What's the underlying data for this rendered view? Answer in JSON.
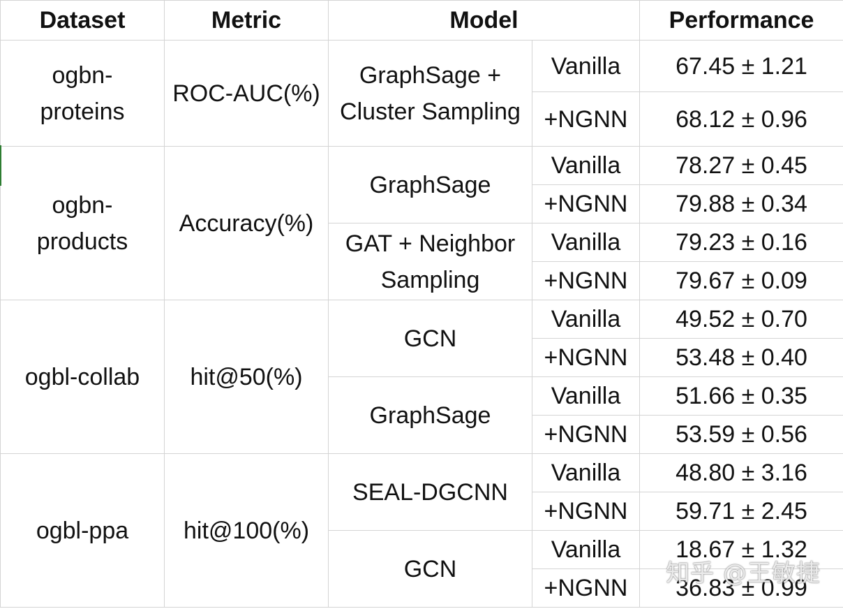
{
  "headers": {
    "dataset": "Dataset",
    "metric": "Metric",
    "model": "Model",
    "performance": "Performance"
  },
  "groups": [
    {
      "dataset": "ogbn-proteins",
      "metric": "ROC-AUC(%)",
      "models": [
        {
          "name": "GraphSage + Cluster Sampling",
          "vanilla": "67.45 ± 1.21",
          "ngnn": "68.12 ± 0.96"
        }
      ]
    },
    {
      "dataset": "ogbn-products",
      "metric": "Accuracy(%)",
      "models": [
        {
          "name": "GraphSage",
          "vanilla": "78.27 ± 0.45",
          "ngnn": "79.88 ± 0.34"
        },
        {
          "name": "GAT + Neighbor Sampling",
          "vanilla": "79.23 ± 0.16",
          "ngnn": "79.67 ± 0.09"
        }
      ]
    },
    {
      "dataset": "ogbl-collab",
      "metric": "hit@50(%)",
      "models": [
        {
          "name": "GCN",
          "vanilla": "49.52 ± 0.70",
          "ngnn": "53.48 ± 0.40"
        },
        {
          "name": "GraphSage",
          "vanilla": "51.66 ± 0.35",
          "ngnn": "53.59 ± 0.56"
        }
      ]
    },
    {
      "dataset": "ogbl-ppa",
      "metric": "hit@100(%)",
      "models": [
        {
          "name": "SEAL-DGCNN",
          "vanilla": "48.80 ± 3.16",
          "ngnn": "59.71 ± 2.45"
        },
        {
          "name": "GCN",
          "vanilla": "18.67 ± 1.32",
          "ngnn": "36.83 ± 0.99"
        }
      ]
    }
  ],
  "variant_labels": {
    "vanilla": "Vanilla",
    "ngnn": "+NGNN"
  },
  "watermark": "知乎 @王敏捷"
}
